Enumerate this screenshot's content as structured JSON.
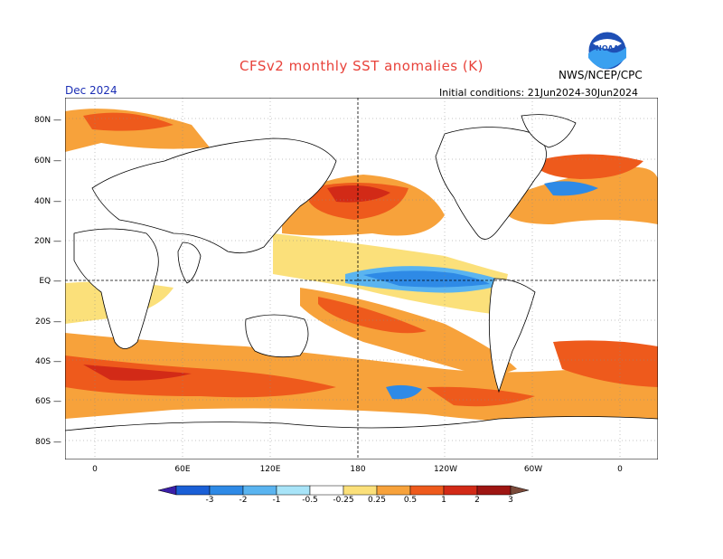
{
  "title": "CFSv2 monthly SST anomalies (K)",
  "agency": "NWS/NCEP/CPC",
  "logo_text": "NOAA",
  "forecast_month": "Dec 2024",
  "initial_conditions": "Initial conditions: 21Jun2024-30Jun2024",
  "lat_labels": [
    "80N",
    "60N",
    "40N",
    "20N",
    "EQ",
    "20S",
    "40S",
    "60S",
    "80S"
  ],
  "lon_labels": [
    "0",
    "60E",
    "120E",
    "180",
    "120W",
    "60W",
    "0"
  ],
  "colorbar": {
    "labels": [
      "-3",
      "-2",
      "-1",
      "-0.5",
      "-0.25",
      "0.25",
      "0.5",
      "1",
      "2",
      "3"
    ],
    "colors": [
      "#3b1fa8",
      "#1a5fd6",
      "#2e8ae6",
      "#5ab4f0",
      "#a8e4f8",
      "#ffffff",
      "#fbe07a",
      "#f7a23b",
      "#ee5a1c",
      "#d22a17",
      "#9e1512",
      "#7a4a3a"
    ]
  },
  "colors": {
    "title": "#e8423a",
    "month": "#1c2fb5"
  }
}
